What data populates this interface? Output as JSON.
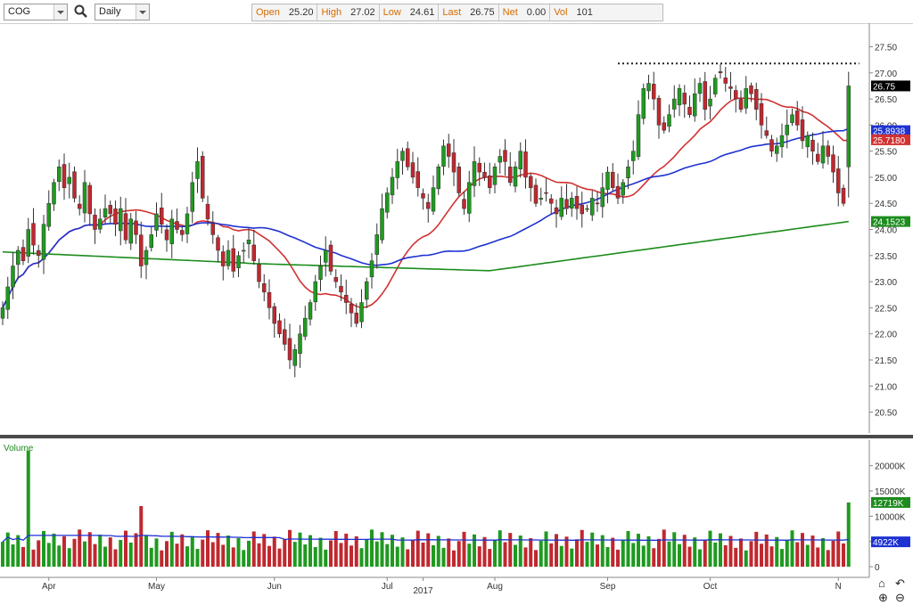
{
  "toolbar": {
    "symbol": "COG",
    "period": "Daily",
    "quote": [
      {
        "label": "Open",
        "value": "25.20"
      },
      {
        "label": "High",
        "value": "27.02"
      },
      {
        "label": "Low",
        "value": "24.61"
      },
      {
        "label": "Last",
        "value": "26.75"
      },
      {
        "label": "Net",
        "value": "0.00"
      },
      {
        "label": "Vol",
        "value": "101"
      }
    ]
  },
  "colors": {
    "up": "#1f9a1f",
    "down": "#c0282f",
    "ma_fast": "#d23232",
    "ma_mid": "#1e32d2",
    "ma_slow": "#1c8c1c"
  },
  "chart_data": [
    {
      "type": "candlestick",
      "title": "",
      "x_tick_labels": [
        "Apr",
        "May",
        "Jun",
        "Jul",
        "2017",
        "Aug",
        "Sep",
        "Oct",
        "N"
      ],
      "x_tick_bar_index": [
        9,
        30,
        53,
        75,
        82,
        96,
        118,
        138,
        163
      ],
      "y_ticks": [
        20.5,
        21.0,
        21.5,
        22.0,
        22.5,
        23.0,
        23.5,
        24.0,
        24.5,
        25.0,
        25.5,
        26.0,
        26.5,
        27.0,
        27.5
      ],
      "y_tick_labels": [
        "20.50",
        "21.00",
        "21.50",
        "22.00",
        "22.50",
        "23.00",
        "23.50",
        "24.00",
        "24.50",
        "25.00",
        "25.50",
        "26.00",
        "26.50",
        "27.00",
        "27.50"
      ],
      "ylim": [
        20.1,
        27.85
      ],
      "resistance_level": 27.18,
      "value_labels": [
        {
          "text": "26.75",
          "value": 26.75,
          "color": "#000000"
        },
        {
          "text": "25.8938",
          "value": 25.8938,
          "color": "#1e32d2"
        },
        {
          "text": "25.7180",
          "value": 25.718,
          "color": "#d23232"
        },
        {
          "text": "24.1523",
          "value": 24.1523,
          "color": "#1c8c1c"
        }
      ],
      "closes": [
        22.5,
        22.9,
        23.3,
        23.6,
        23.4,
        24.0,
        23.7,
        23.5,
        24.1,
        24.5,
        24.9,
        25.2,
        24.8,
        25.0,
        24.6,
        24.4,
        24.9,
        24.3,
        24.0,
        24.2,
        24.4,
        24.3,
        24.1,
        24.4,
        23.8,
        24.2,
        23.9,
        23.3,
        23.6,
        23.9,
        24.3,
        24.1,
        23.8,
        24.2,
        24.0,
        23.9,
        24.3,
        24.9,
        25.3,
        24.6,
        24.2,
        23.9,
        23.6,
        23.3,
        23.6,
        23.2,
        23.5,
        23.6,
        23.8,
        23.4,
        23.0,
        22.8,
        22.5,
        22.2,
        22.0,
        21.8,
        21.5,
        21.7,
        22.0,
        22.3,
        22.6,
        23.0,
        23.3,
        23.6,
        23.2,
        23.0,
        22.8,
        22.6,
        22.4,
        22.2,
        22.6,
        23.0,
        23.4,
        23.9,
        24.4,
        24.7,
        25.0,
        25.3,
        25.5,
        25.2,
        25.0,
        24.8,
        24.6,
        24.4,
        24.8,
        25.2,
        25.6,
        25.4,
        25.1,
        24.7,
        24.4,
        24.9,
        25.3,
        25.1,
        25.0,
        24.8,
        25.2,
        25.4,
        25.3,
        24.9,
        25.2,
        25.5,
        25.0,
        24.8,
        24.5,
        24.6,
        24.7,
        24.5,
        24.3,
        24.6,
        24.4,
        24.6,
        24.4,
        24.3,
        24.4,
        24.6,
        24.5,
        24.8,
        25.1,
        24.8,
        24.6,
        24.9,
        25.2,
        25.5,
        26.2,
        26.7,
        26.8,
        26.5,
        26.0,
        25.9,
        26.2,
        26.5,
        26.7,
        26.4,
        26.2,
        26.6,
        26.8,
        26.3,
        26.5,
        26.9,
        27.0,
        26.8,
        26.7,
        26.5,
        26.3,
        26.7,
        26.6,
        26.3,
        26.0,
        25.8,
        25.5,
        25.6,
        25.8,
        26.0,
        26.2,
        26.0,
        25.7,
        25.8,
        25.5,
        25.3,
        25.6,
        25.4,
        25.1,
        24.7,
        24.5,
        26.75
      ],
      "volume": {
        "label": "Volume",
        "y_tick_labels": [
          "20000K",
          "15000K",
          "10000K",
          "5000K",
          "0"
        ],
        "y_ticks": [
          20000,
          15000,
          10000,
          5000,
          0
        ],
        "ylim": [
          0,
          24000
        ],
        "value_labels": [
          {
            "text": "12719K",
            "value": 12719,
            "color": "#1c8c1c"
          },
          {
            "text": "4922K",
            "value": 4922,
            "color": "#1e32d2"
          }
        ]
      }
    }
  ]
}
